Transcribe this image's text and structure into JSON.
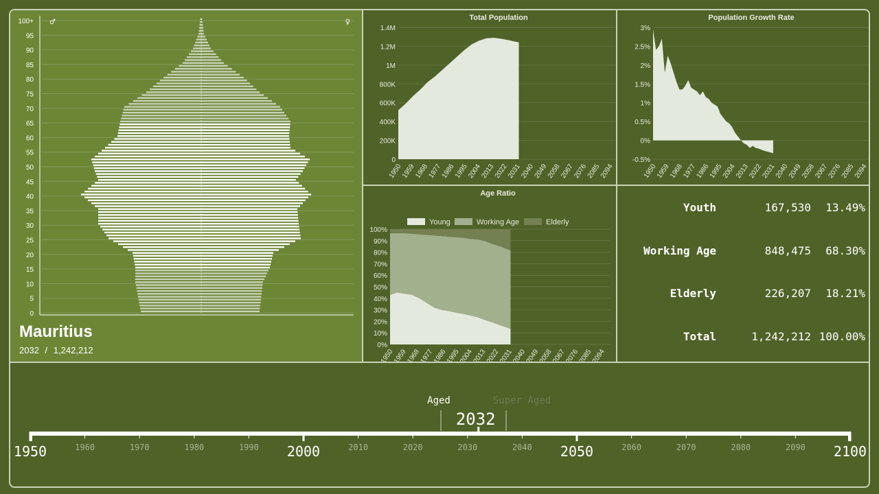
{
  "country": {
    "name": "Mauritius",
    "year": "2032",
    "separator": "/",
    "population": "1,242,212"
  },
  "pyramid": {
    "age_labels": [
      "100+",
      "95",
      "90",
      "85",
      "80",
      "75",
      "70",
      "65",
      "60",
      "55",
      "50",
      "45",
      "40",
      "35",
      "30",
      "25",
      "20",
      "15",
      "10",
      "5",
      "0"
    ],
    "male_symbol": "♂",
    "female_symbol": "♀",
    "male_color": "#c9d3b8",
    "female_color": "#c9d3b8",
    "highlight_color": "#ffffff"
  },
  "charts": {
    "total_population": {
      "title": "Total Population",
      "y_ticks": [
        "1.4M",
        "1.2M",
        "1M",
        "800K",
        "600K",
        "400K",
        "200K",
        "0"
      ],
      "x_ticks": [
        "1950",
        "1959",
        "1968",
        "1977",
        "1986",
        "1995",
        "2004",
        "2013",
        "2022",
        "2031",
        "2040",
        "2049",
        "2058",
        "2067",
        "2076",
        "2085",
        "2094"
      ]
    },
    "growth_rate": {
      "title": "Population Growth Rate",
      "y_ticks": [
        "3%",
        "2.5%",
        "2%",
        "1.5%",
        "1%",
        "0.5%",
        "0%",
        "-0.5%"
      ],
      "x_ticks": [
        "1950",
        "1959",
        "1968",
        "1977",
        "1986",
        "1995",
        "2004",
        "2013",
        "2022",
        "2031",
        "2040",
        "2049",
        "2058",
        "2067",
        "2076",
        "2085",
        "2094"
      ]
    },
    "age_ratio": {
      "title": "Age Ratio",
      "legend": [
        "Young",
        "Working Age",
        "Elderly"
      ],
      "y_ticks": [
        "100%",
        "90%",
        "80%",
        "70%",
        "60%",
        "50%",
        "40%",
        "30%",
        "20%",
        "10%",
        "0%"
      ],
      "x_ticks": [
        "1950",
        "1959",
        "1968",
        "1977",
        "1986",
        "1995",
        "2004",
        "2013",
        "2022",
        "2031",
        "2040",
        "2049",
        "2058",
        "2067",
        "2076",
        "2085",
        "2094"
      ]
    }
  },
  "chart_data": [
    {
      "type": "area",
      "title": "Total Population",
      "x": [
        1950,
        1955,
        1960,
        1965,
        1970,
        1975,
        1980,
        1985,
        1990,
        1995,
        2000,
        2005,
        2010,
        2015,
        2020,
        2025,
        2030,
        2032
      ],
      "values": [
        520000,
        590000,
        670000,
        740000,
        820000,
        880000,
        950000,
        1020000,
        1090000,
        1160000,
        1220000,
        1260000,
        1285000,
        1290000,
        1280000,
        1265000,
        1248000,
        1242212
      ],
      "ylim": [
        0,
        1400000
      ],
      "xlim": [
        1950,
        2100
      ]
    },
    {
      "type": "area",
      "title": "Population Growth Rate",
      "x": [
        1950,
        1952,
        1954,
        1956,
        1958,
        1960,
        1962,
        1964,
        1966,
        1968,
        1970,
        1972,
        1974,
        1976,
        1978,
        1980,
        1982,
        1984,
        1986,
        1988,
        1990,
        1992,
        1994,
        1996,
        1998,
        2000,
        2002,
        2004,
        2006,
        2008,
        2010,
        2012,
        2014,
        2016,
        2018,
        2020,
        2022,
        2024,
        2026,
        2028,
        2030,
        2032
      ],
      "values": [
        2.95,
        2.4,
        2.5,
        2.7,
        1.8,
        2.25,
        2.05,
        1.8,
        1.55,
        1.35,
        1.35,
        1.45,
        1.6,
        1.4,
        1.35,
        1.3,
        1.2,
        1.3,
        1.15,
        1.1,
        1.0,
        0.95,
        0.9,
        0.7,
        0.6,
        0.5,
        0.45,
        0.35,
        0.2,
        0.1,
        0.0,
        -0.08,
        -0.12,
        -0.2,
        -0.15,
        -0.2,
        -0.22,
        -0.25,
        -0.28,
        -0.3,
        -0.32,
        -0.34
      ],
      "ylim": [
        -0.5,
        3
      ],
      "xlim": [
        1950,
        2100
      ]
    },
    {
      "type": "area",
      "title": "Age Ratio",
      "x": [
        1950,
        1955,
        1960,
        1965,
        1970,
        1975,
        1980,
        1985,
        1990,
        1995,
        2000,
        2005,
        2010,
        2015,
        2020,
        2025,
        2030,
        2032
      ],
      "series": [
        {
          "name": "Young",
          "values": [
            43,
            45,
            44,
            43,
            40,
            36,
            32,
            30,
            29,
            27.5,
            26.5,
            25,
            23.5,
            21,
            19,
            16.5,
            14.5,
            13.5
          ]
        },
        {
          "name": "Working Age",
          "values": [
            53.5,
            51.5,
            52.5,
            53,
            55.5,
            59,
            62.5,
            64,
            64.5,
            65.5,
            66,
            66.5,
            67.5,
            68.5,
            68,
            68.5,
            68,
            68.3
          ]
        },
        {
          "name": "Elderly",
          "values": [
            3.5,
            3.5,
            3.5,
            4,
            4.5,
            5,
            5.5,
            6,
            6.5,
            7,
            7.5,
            8.5,
            9,
            10.5,
            13,
            15,
            17.5,
            18.2
          ]
        }
      ],
      "ylim": [
        0,
        100
      ],
      "xlim": [
        1950,
        2100
      ]
    }
  ],
  "stats": [
    {
      "label": "Youth",
      "value": "167,530",
      "pct": "13.49%"
    },
    {
      "label": "Working Age",
      "value": "848,475",
      "pct": "68.30%"
    },
    {
      "label": "Elderly",
      "value": "226,207",
      "pct": "18.21%"
    },
    {
      "label": "Total",
      "value": "1,242,212",
      "pct": "100.00%"
    }
  ],
  "timeline": {
    "stage_labels": [
      "Aged",
      "Super Aged"
    ],
    "current_year": "2032",
    "current_value": 2032,
    "major_labels": [
      "1950",
      "2000",
      "2050",
      "2100"
    ],
    "minor_labels": [
      "1960",
      "1970",
      "1980",
      "1990",
      "2010",
      "2020",
      "2030",
      "2040",
      "2060",
      "2070",
      "2080",
      "2090"
    ]
  },
  "colors": {
    "background": "#4f6228",
    "pyramid_panel": "#6c8636",
    "border": "#c9d3b8",
    "area_fill": "#e4e9de",
    "young": "#e4e9de",
    "working_age": "#a3b08d",
    "elderly": "#738051"
  }
}
